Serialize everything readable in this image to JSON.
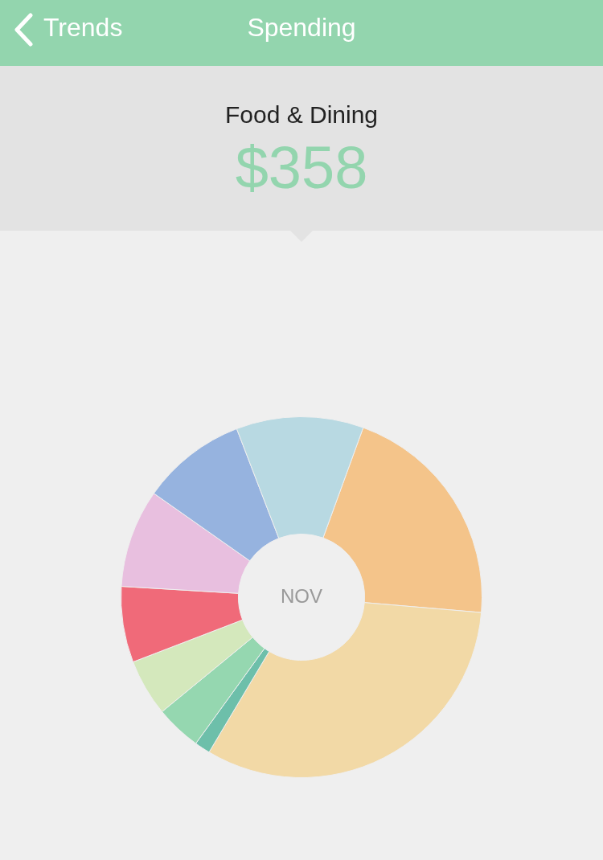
{
  "chart_data": {
    "type": "donut",
    "title": "Spending",
    "subtitle": "Food & Dining",
    "annotations": [
      "Trends",
      "$358",
      "NOV"
    ],
    "categories": [
      null,
      null,
      null,
      null,
      null,
      null,
      null,
      null,
      null
    ],
    "values": [
      20.8,
      32.2,
      1.4,
      4.1,
      5.1,
      6.8,
      8.8,
      9.4,
      11.4
    ],
    "colors": [
      "#f4c48a",
      "#f2d9a6",
      "#6dbfaa",
      "#95d7b0",
      "#d4e8bc",
      "#f06a79",
      "#e8bfdf",
      "#96b3df",
      "#b8d9e2"
    ],
    "legend": false
  }
}
